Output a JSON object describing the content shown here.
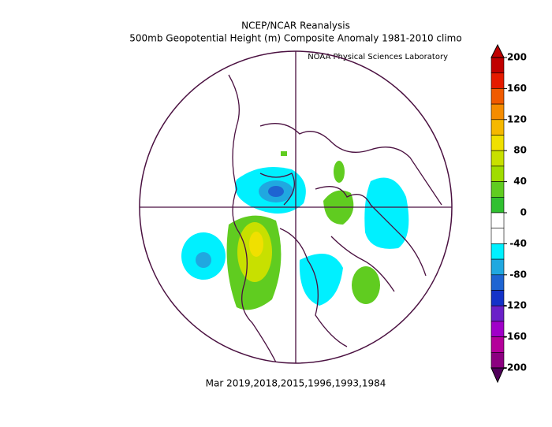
{
  "header": {
    "title": "NCEP/NCAR Reanalysis",
    "subtitle": "500mb Geopotential Height (m) Composite Anomaly 1981-2010 climo",
    "credit": "NOAA Physical Sciences Laboratory"
  },
  "footer": "Mar 2019,2018,2015,1996,1993,1984",
  "colorbar": {
    "ticks": [
      200,
      160,
      120,
      80,
      40,
      0,
      -40,
      -80,
      -120,
      -160,
      -200
    ],
    "colors": [
      "#c00000",
      "#e51a00",
      "#f05a00",
      "#f58c00",
      "#f5b800",
      "#f0e000",
      "#c8e000",
      "#a0dc00",
      "#60cc20",
      "#30c030",
      "#ffffff",
      "#ffffff",
      "#00f0ff",
      "#20a8e0",
      "#1e64d2",
      "#1432c8",
      "#6a20c8",
      "#a000c8",
      "#b4009a",
      "#8c0080"
    ],
    "top_color": "#c00000",
    "bottom_color": "#50005a"
  }
}
